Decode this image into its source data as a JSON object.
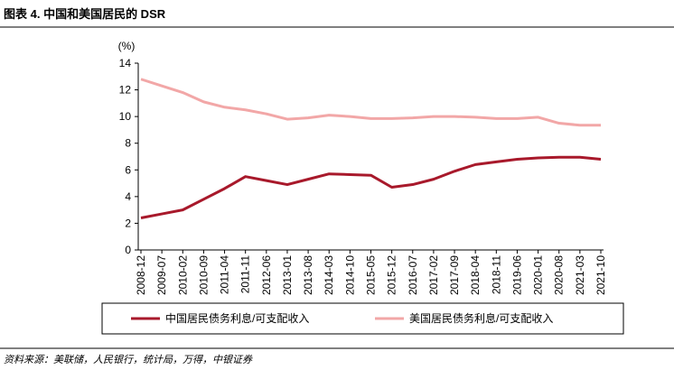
{
  "chart_data": {
    "type": "line",
    "title": "图表 4. 中国和美国居民的 DSR",
    "y_label": "(%)",
    "source": "资料来源：美联储，人民银行，统计局，万得，中银证券",
    "categories": [
      "2008-12",
      "2009-07",
      "2010-02",
      "2010-09",
      "2011-04",
      "2011-11",
      "2012-06",
      "2013-01",
      "2013-08",
      "2014-03",
      "2014-10",
      "2015-05",
      "2015-12",
      "2016-07",
      "2017-02",
      "2017-09",
      "2018-04",
      "2018-11",
      "2019-06",
      "2020-01",
      "2020-08",
      "2021-03",
      "2021-10"
    ],
    "series": [
      {
        "name": "中国居民债务利息/可支配收入",
        "color": "#a8192b",
        "values": [
          2.4,
          2.7,
          3.0,
          3.8,
          4.6,
          5.5,
          5.2,
          4.9,
          5.3,
          5.7,
          5.65,
          5.6,
          4.7,
          4.9,
          5.3,
          5.9,
          6.4,
          6.6,
          6.8,
          6.9,
          6.95,
          6.95,
          6.8
        ]
      },
      {
        "name": "美国居民债务利息/可支配收入",
        "color": "#f2a7a7",
        "values": [
          12.8,
          12.3,
          11.8,
          11.1,
          10.7,
          10.5,
          10.2,
          9.8,
          9.9,
          10.1,
          10.0,
          9.85,
          9.85,
          9.9,
          10.0,
          10.0,
          9.95,
          9.85,
          9.85,
          9.95,
          9.5,
          9.35,
          9.35
        ]
      }
    ],
    "ylim": [
      0,
      14
    ],
    "yticks": [
      0,
      2,
      4,
      6,
      8,
      10,
      12,
      14
    ],
    "grid": false,
    "legend": "bottom"
  }
}
